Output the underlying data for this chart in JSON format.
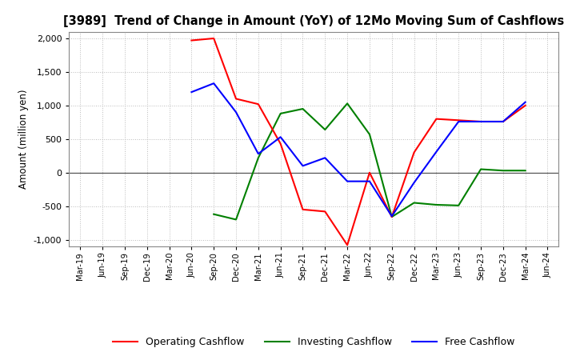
{
  "title": "[3989]  Trend of Change in Amount (YoY) of 12Mo Moving Sum of Cashflows",
  "ylabel": "Amount (million yen)",
  "x_labels": [
    "Mar-19",
    "Jun-19",
    "Sep-19",
    "Dec-19",
    "Mar-20",
    "Jun-20",
    "Sep-20",
    "Dec-20",
    "Mar-21",
    "Jun-21",
    "Sep-21",
    "Dec-21",
    "Mar-22",
    "Jun-22",
    "Sep-22",
    "Dec-22",
    "Mar-23",
    "Jun-23",
    "Sep-23",
    "Dec-23",
    "Mar-24",
    "Jun-24"
  ],
  "operating": [
    null,
    null,
    null,
    null,
    null,
    1970,
    2000,
    1100,
    1020,
    430,
    -550,
    -580,
    -1080,
    0,
    -660,
    300,
    800,
    780,
    760,
    760,
    1000,
    null
  ],
  "investing": [
    null,
    null,
    null,
    null,
    null,
    null,
    -620,
    -700,
    220,
    880,
    950,
    640,
    1030,
    570,
    -660,
    -450,
    -480,
    -490,
    50,
    30,
    30,
    null
  ],
  "free": [
    null,
    null,
    null,
    null,
    null,
    1200,
    1330,
    900,
    280,
    530,
    100,
    220,
    -130,
    -130,
    -650,
    -150,
    310,
    760,
    760,
    760,
    1050,
    null
  ],
  "ylim": [
    -1100,
    2100
  ],
  "yticks": [
    -1000,
    -500,
    0,
    500,
    1000,
    1500,
    2000
  ],
  "operating_color": "#ff0000",
  "investing_color": "#008000",
  "free_color": "#0000ff",
  "bg_color": "#ffffff",
  "grid_color": "#bbbbbb"
}
